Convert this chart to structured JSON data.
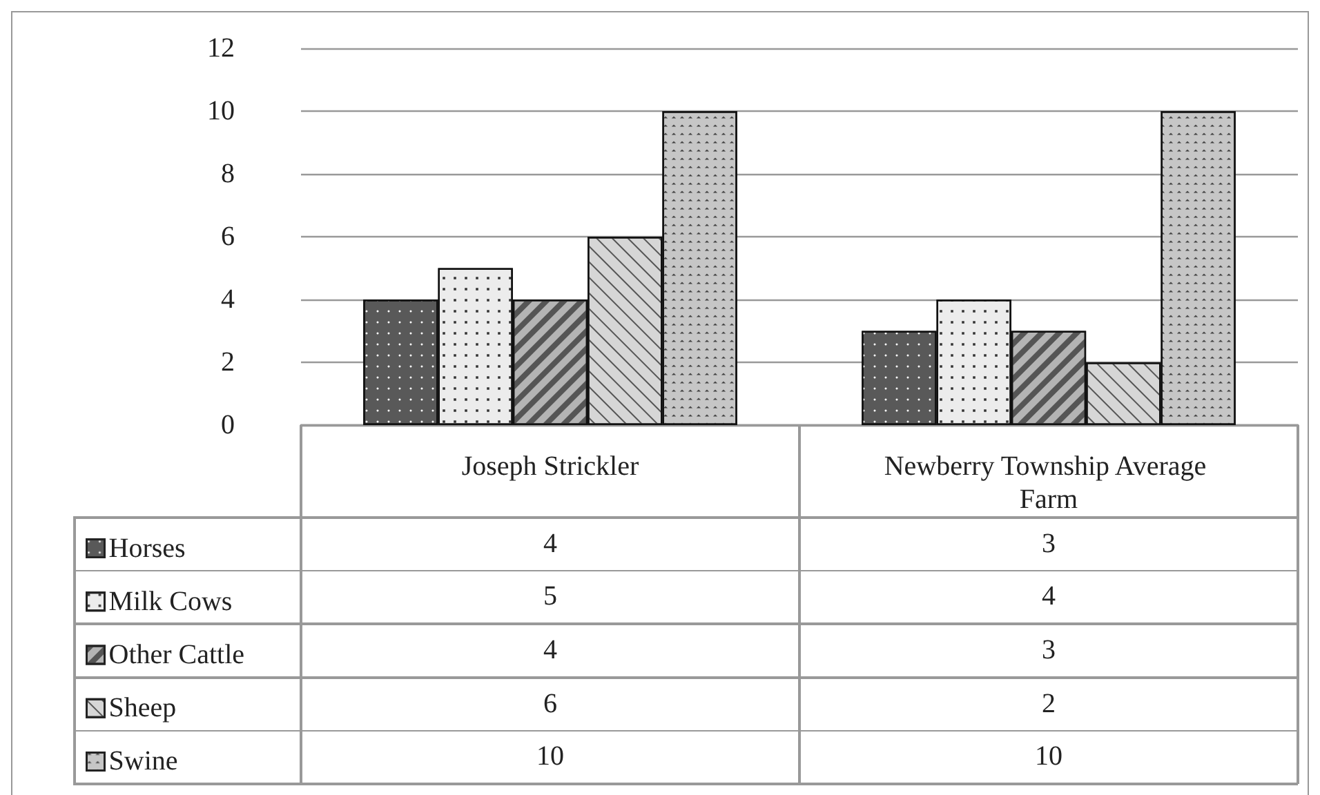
{
  "chart_data": {
    "type": "bar",
    "categories": [
      "Joseph Strickler",
      "Newberry Township Average Farm"
    ],
    "series": [
      {
        "name": "Horses",
        "color": "#595959",
        "values": [
          4,
          3
        ]
      },
      {
        "name": "Milk Cows",
        "color": "#ececec",
        "values": [
          5,
          4
        ]
      },
      {
        "name": "Other Cattle",
        "color": "#b4b4b4",
        "values": [
          4,
          3
        ]
      },
      {
        "name": "Sheep",
        "color": "#d6d6d6",
        "values": [
          6,
          2
        ]
      },
      {
        "name": "Swine",
        "color": "#c6c6c6",
        "values": [
          10,
          10
        ]
      }
    ],
    "ylim": [
      0,
      12
    ],
    "yticks": [
      0,
      2,
      4,
      6,
      8,
      10,
      12
    ],
    "grid": "y",
    "legend": "bottom",
    "data_labels": true
  }
}
